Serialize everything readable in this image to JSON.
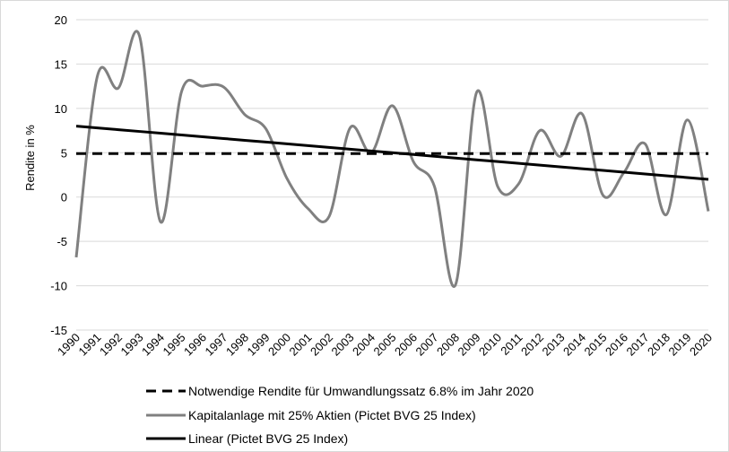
{
  "chart_data": {
    "type": "line",
    "ylabel": "Rendite in %",
    "ylim": [
      -15,
      20
    ],
    "yticks": [
      -15,
      -10,
      -5,
      0,
      5,
      10,
      15,
      20
    ],
    "grid": true,
    "legend_position": "bottom",
    "x": [
      "1990",
      "1991",
      "1992",
      "1993",
      "1994",
      "1995",
      "1996",
      "1997",
      "1998",
      "1999",
      "2000",
      "2001",
      "2002",
      "2003",
      "2004",
      "2005",
      "2006",
      "2007",
      "2008",
      "2009",
      "2010",
      "2011",
      "2012",
      "2013",
      "2014",
      "2015",
      "2016",
      "2017",
      "2018",
      "2019",
      "2020"
    ],
    "series": [
      {
        "name": "Notwendige Rendite für Umwandlungssatz 6.8% im Jahr 2020",
        "style": "dashed",
        "color": "#000000",
        "values": [
          4.9,
          4.9,
          4.9,
          4.9,
          4.9,
          4.9,
          4.9,
          4.9,
          4.9,
          4.9,
          4.9,
          4.9,
          4.9,
          4.9,
          4.9,
          4.9,
          4.9,
          4.9,
          4.9,
          4.9,
          4.9,
          4.9,
          4.9,
          4.9,
          4.9,
          4.9,
          4.9,
          4.9,
          4.9,
          4.9,
          4.9
        ]
      },
      {
        "name": "Kapitalanlage mit 25% Aktien (Pictet BVG 25 Index)",
        "style": "solid",
        "color": "#808080",
        "values": [
          -6.8,
          13.6,
          12.3,
          18.2,
          -2.8,
          11.9,
          12.5,
          12.4,
          9.3,
          7.7,
          2.1,
          -1.3,
          -2.2,
          7.8,
          5.0,
          10.3,
          4.0,
          1.2,
          -9.9,
          11.8,
          1.2,
          1.5,
          7.5,
          4.6,
          9.4,
          0.2,
          2.8,
          6.0,
          -2.0,
          8.7,
          -1.6
        ]
      },
      {
        "name": "Linear (Pictet BVG 25 Index)",
        "style": "solid",
        "color": "#000000",
        "values": [
          8.0,
          7.8,
          7.6,
          7.4,
          7.2,
          7.0,
          6.8,
          6.6,
          6.4,
          6.2,
          6.0,
          5.8,
          5.6,
          5.4,
          5.2,
          5.0,
          4.8,
          4.6,
          4.4,
          4.2,
          4.0,
          3.8,
          3.6,
          3.4,
          3.2,
          3.0,
          2.8,
          2.6,
          2.4,
          2.2,
          2.0
        ]
      }
    ]
  }
}
